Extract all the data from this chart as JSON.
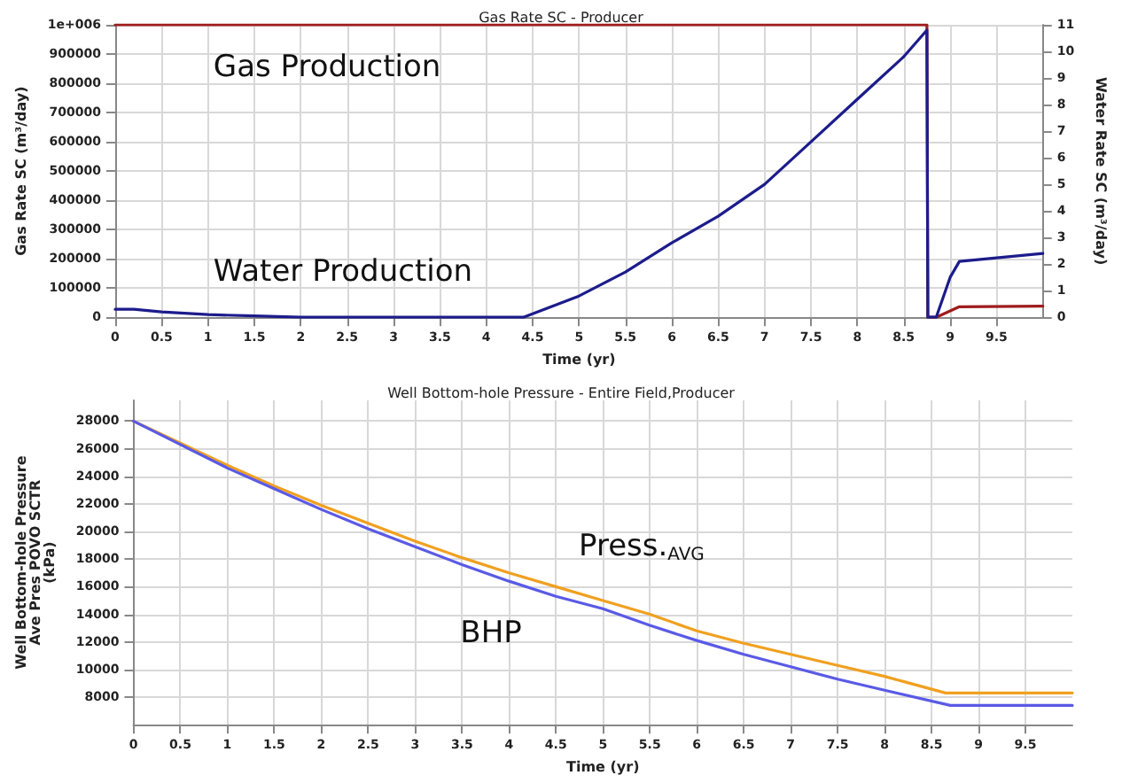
{
  "chart_data": [
    {
      "type": "line",
      "title": "Gas Rate SC - Producer",
      "xlabel": "Time (yr)",
      "ylabel": "Gas Rate SC (m³/day)",
      "y2label": "Water Rate SC (m³/day)",
      "xlim": [
        0,
        10
      ],
      "xticks": [
        0,
        0.5,
        1,
        1.5,
        2,
        2.5,
        3,
        3.5,
        4,
        4.5,
        5,
        5.5,
        6,
        6.5,
        7,
        7.5,
        8,
        8.5,
        9,
        9.5
      ],
      "ylim": [
        0,
        1000000
      ],
      "yticks": [
        0,
        100000,
        200000,
        300000,
        400000,
        500000,
        600000,
        700000,
        800000,
        900000,
        {
          "value": 1000000,
          "label": "1e+006"
        }
      ],
      "y2lim": [
        0,
        11
      ],
      "y2ticks": [
        0,
        1,
        2,
        3,
        4,
        5,
        6,
        7,
        8,
        9,
        10,
        11
      ],
      "grid": true,
      "marker": "none",
      "line_style": "solid",
      "series": [
        {
          "color": "#a01c1c",
          "x": [
            0,
            8.75,
            8.76,
            8.85,
            9.1,
            10
          ],
          "values": [
            1000000,
            1000000,
            0,
            0,
            36000,
            38000
          ]
        },
        {
          "color": "#1c1c8c",
          "axis": "y2",
          "x": [
            0,
            0.2,
            0.5,
            1,
            1.5,
            2,
            4.4,
            4.7,
            5,
            5.5,
            6,
            6.5,
            7,
            7.5,
            8,
            8.5,
            8.75,
            8.76,
            8.85,
            9,
            9.1,
            10
          ],
          "values": [
            0.3,
            0.3,
            0.2,
            0.1,
            0.05,
            0,
            0,
            0.4,
            0.8,
            1.7,
            2.8,
            3.8,
            5.0,
            6.6,
            8.2,
            9.8,
            10.8,
            0,
            0,
            1.5,
            2.1,
            2.4
          ]
        }
      ],
      "annotations": [
        "Gas Production",
        "Water Production"
      ]
    },
    {
      "type": "line",
      "title": "Well Bottom-hole Pressure - Entire Field,Producer",
      "xlabel": "Time (yr)",
      "ylabel": "Well Bottom-hole Pressure\nAve Pres POVO SCTR\n(kPa)",
      "xlim": [
        0,
        10
      ],
      "xticks": [
        0,
        0.5,
        1,
        1.5,
        2,
        2.5,
        3,
        3.5,
        4,
        4.5,
        5,
        5.5,
        6,
        6.5,
        7,
        7.5,
        8,
        8.5,
        9,
        9.5
      ],
      "ylim": [
        6000,
        29500
      ],
      "yticks": [
        8000,
        10000,
        12000,
        14000,
        16000,
        18000,
        20000,
        22000,
        24000,
        26000,
        28000
      ],
      "grid": true,
      "marker": "none",
      "line_style": "solid",
      "series": [
        {
          "color": "#f0a020",
          "x": [
            0,
            0.5,
            1,
            1.5,
            2,
            2.5,
            3,
            3.5,
            4,
            4.5,
            5,
            5.5,
            6,
            6.5,
            7,
            7.5,
            8,
            8.65,
            10
          ],
          "values": [
            28000,
            26400,
            24800,
            23300,
            21900,
            20600,
            19300,
            18100,
            17000,
            16000,
            15000,
            14000,
            12800,
            11900,
            11100,
            10300,
            9500,
            8300,
            8300
          ]
        },
        {
          "color": "#5a5ae6",
          "x": [
            0,
            0.5,
            1,
            1.5,
            2,
            2.5,
            3,
            3.5,
            4,
            4.5,
            5,
            5.5,
            6,
            6.5,
            7,
            7.5,
            8,
            8.7,
            10
          ],
          "values": [
            28000,
            26300,
            24600,
            23100,
            21600,
            20200,
            18900,
            17600,
            16400,
            15300,
            14400,
            13200,
            12100,
            11100,
            10200,
            9300,
            8500,
            7400,
            7400
          ]
        }
      ],
      "annotations": [
        "Press.$_{AVG}$",
        "BHP"
      ]
    }
  ]
}
